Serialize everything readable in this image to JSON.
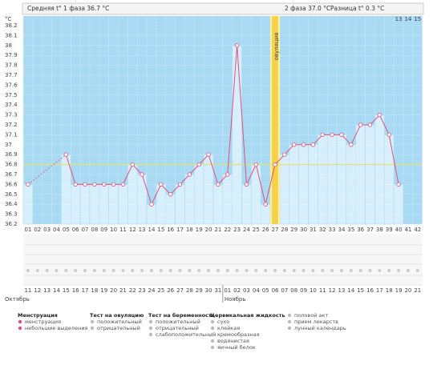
{
  "chart_data": {
    "type": "line",
    "y_unit": "°C",
    "phase1": "Средняя t° 1 фаза 36.7 °C",
    "phase2": "2 фаза 37.0 °C",
    "difference": "Разница t° 0.3 °C",
    "ovulation_label": "овуляция",
    "ovulation_day": 27,
    "cover_line": 36.8,
    "top_labels": [
      "13",
      "14",
      "15"
    ],
    "categories": [
      "01",
      "02",
      "03",
      "04",
      "05",
      "06",
      "07",
      "08",
      "09",
      "10",
      "11",
      "12",
      "13",
      "14",
      "15",
      "16",
      "17",
      "18",
      "19",
      "20",
      "21",
      "22",
      "23",
      "24",
      "25",
      "26",
      "27",
      "28",
      "29",
      "30",
      "31",
      "32",
      "33",
      "34",
      "35",
      "36",
      "37",
      "38",
      "39",
      "40",
      "41",
      "42"
    ],
    "dates": [
      "11",
      "12",
      "13",
      "14",
      "15",
      "16",
      "17",
      "18",
      "19",
      "20",
      "21",
      "22",
      "23",
      "24",
      "25",
      "26",
      "27",
      "28",
      "29",
      "30",
      "31",
      "01",
      "02",
      "03",
      "04",
      "05",
      "06",
      "07",
      "08",
      "09",
      "10",
      "11",
      "12",
      "13",
      "14",
      "15",
      "16",
      "17",
      "18",
      "19",
      "20",
      "21"
    ],
    "months": [
      "Октябрь",
      "Ноябрь"
    ],
    "series": [
      {
        "name": "t°",
        "color": "#e0507a",
        "values": [
          36.6,
          null,
          null,
          null,
          36.9,
          36.6,
          36.6,
          36.6,
          36.6,
          36.6,
          36.6,
          36.8,
          36.7,
          36.4,
          36.6,
          36.5,
          36.6,
          36.7,
          36.8,
          36.9,
          36.6,
          36.7,
          38.0,
          36.6,
          36.8,
          36.4,
          36.8,
          36.9,
          37.0,
          37.0,
          37.0,
          37.1,
          37.1,
          37.1,
          37.0,
          37.2,
          37.2,
          37.3,
          37.1,
          36.6,
          null,
          null
        ]
      }
    ],
    "ylim": [
      36.2,
      38.2
    ],
    "yticks": [
      36.2,
      36.3,
      36.4,
      36.5,
      36.6,
      36.7,
      36.8,
      36.9,
      37,
      37.1,
      37.2,
      37.3,
      37.4,
      37.5,
      37.6,
      37.7,
      37.8,
      37.9,
      38,
      38.1,
      38.2
    ],
    "legend": [
      {
        "title": "Менструация",
        "items": [
          "менструация",
          "небольшие выделения"
        ]
      },
      {
        "title": "Тест на овуляцию",
        "items": [
          "положительный",
          "отрицательный"
        ]
      },
      {
        "title": "Тест на беременность",
        "items": [
          "положительный",
          "отрицательный",
          "слабоположительный"
        ]
      },
      {
        "title": "Цервикальная жидкость",
        "items": [
          "сухо",
          "клейкая",
          "кремообразная",
          "водянистая",
          "яичный белок"
        ]
      },
      {
        "items": [
          "половой акт",
          "прием лекарств",
          "лунный календарь"
        ]
      }
    ]
  }
}
